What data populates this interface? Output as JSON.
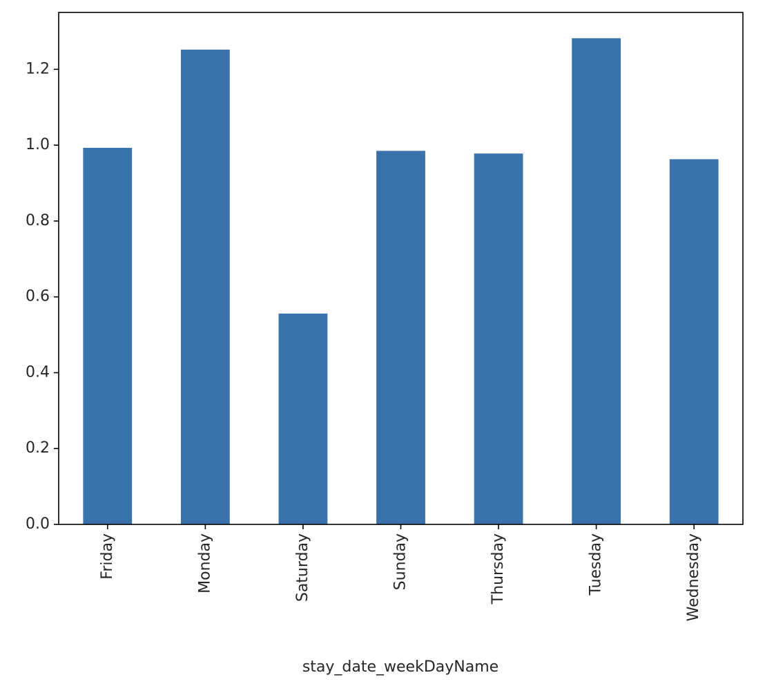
{
  "chart_data": {
    "type": "bar",
    "categories": [
      "Friday",
      "Monday",
      "Saturday",
      "Sunday",
      "Thursday",
      "Tuesday",
      "Wednesday"
    ],
    "values": [
      0.993,
      1.252,
      0.556,
      0.985,
      0.978,
      1.282,
      0.963
    ],
    "xlabel": "stay_date_weekDayName",
    "ylabel": "",
    "ylim": [
      0,
      1.35
    ],
    "yticks": [
      0.0,
      0.2,
      0.4,
      0.6,
      0.8,
      1.0,
      1.2
    ],
    "ytick_labels": [
      "0.0",
      "0.2",
      "0.4",
      "0.6",
      "0.8",
      "1.0",
      "1.2"
    ],
    "bar_color": "#3a72ac",
    "grid": false,
    "legend": "none"
  }
}
